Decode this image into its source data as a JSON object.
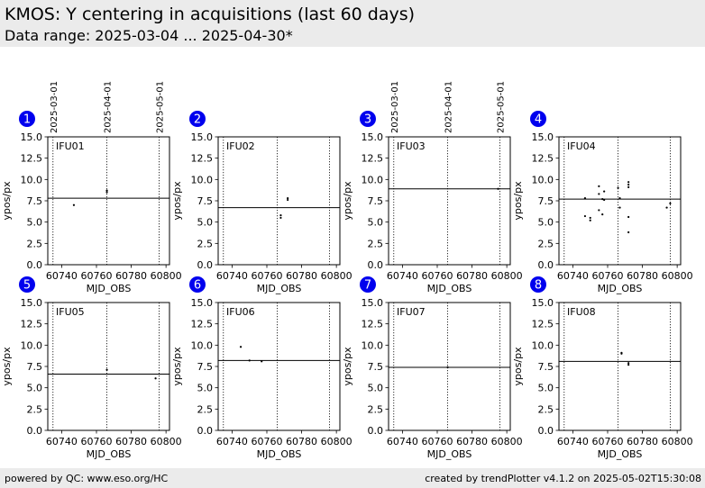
{
  "header": {
    "title": "KMOS: Y centering in acquisitions (last 60 days)",
    "subtitle": "Data range: 2025-03-04 ... 2025-04-30*"
  },
  "footer": {
    "left": "powered by QC: www.eso.org/HC",
    "right": "created by trendPlotter v4.1.2 on 2025-05-02T15:30:08"
  },
  "colors": {
    "badge": "#0000ee",
    "header_bg": "#ebebeb",
    "axes": "#000000"
  },
  "chart_data": {
    "type": "scatter",
    "xlabel": "MJD_OBS",
    "ylabel": "ypos/px",
    "xlim": [
      60732,
      60802
    ],
    "ylim": [
      0,
      15
    ],
    "xticks": [
      60740,
      60760,
      60780,
      60800
    ],
    "yticks": [
      0.0,
      2.5,
      5.0,
      7.5,
      10.0,
      12.5,
      15.0
    ],
    "date_markers": [
      {
        "label": "2025-03-01",
        "mjd": 60735
      },
      {
        "label": "2025-04-01",
        "mjd": 60766
      },
      {
        "label": "2025-05-01",
        "mjd": 60796
      }
    ],
    "panels": [
      {
        "badge": "1",
        "name": "IFU01",
        "reference": 7.8,
        "points": [
          [
            60747,
            7.0
          ],
          [
            60766,
            8.7
          ],
          [
            60766,
            8.5
          ]
        ]
      },
      {
        "badge": "2",
        "name": "IFU02",
        "reference": 6.7,
        "points": [
          [
            60768,
            5.8
          ],
          [
            60768,
            5.5
          ],
          [
            60772,
            7.8
          ],
          [
            60772,
            7.6
          ]
        ]
      },
      {
        "badge": "3",
        "name": "IFU03",
        "reference": 8.9,
        "points": [
          [
            60795,
            8.9
          ]
        ]
      },
      {
        "badge": "4",
        "name": "IFU04",
        "reference": 7.7,
        "points": [
          [
            60747,
            7.8
          ],
          [
            60747,
            5.7
          ],
          [
            60750,
            5.5
          ],
          [
            60750,
            5.2
          ],
          [
            60755,
            9.2
          ],
          [
            60755,
            8.3
          ],
          [
            60755,
            6.4
          ],
          [
            60757,
            7.7
          ],
          [
            60757,
            5.9
          ],
          [
            60758,
            8.6
          ],
          [
            60758,
            7.6
          ],
          [
            60766,
            9.0
          ],
          [
            60767,
            7.8
          ],
          [
            60767,
            6.7
          ],
          [
            60772,
            9.7
          ],
          [
            60772,
            9.4
          ],
          [
            60772,
            9.1
          ],
          [
            60772,
            5.6
          ],
          [
            60772,
            3.8
          ],
          [
            60794,
            6.7
          ],
          [
            60796,
            7.2
          ]
        ]
      },
      {
        "badge": "5",
        "name": "IFU05",
        "reference": 6.6,
        "points": [
          [
            60766,
            7.1
          ],
          [
            60794,
            6.1
          ]
        ]
      },
      {
        "badge": "6",
        "name": "IFU06",
        "reference": 8.2,
        "points": [
          [
            60745,
            9.8
          ],
          [
            60750,
            8.2
          ],
          [
            60757,
            8.1
          ]
        ]
      },
      {
        "badge": "7",
        "name": "IFU07",
        "reference": 7.4,
        "points": [
          [
            60766,
            7.4
          ]
        ]
      },
      {
        "badge": "8",
        "name": "IFU08",
        "reference": 8.1,
        "points": [
          [
            60768,
            9.1
          ],
          [
            60768,
            9.0
          ],
          [
            60772,
            7.9
          ],
          [
            60772,
            7.7
          ]
        ]
      }
    ]
  }
}
